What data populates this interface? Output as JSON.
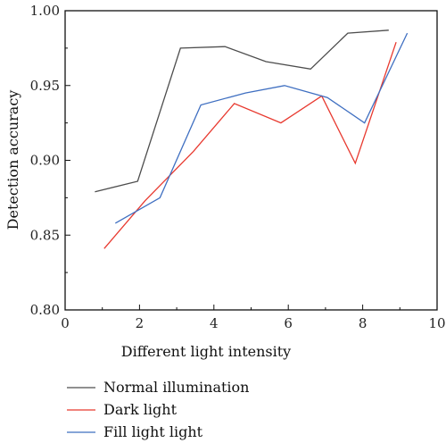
{
  "chart_data": {
    "type": "line",
    "xlabel": "Different light intensity",
    "ylabel": "Detection accuracy",
    "xlim": [
      0,
      10
    ],
    "ylim": [
      0.8,
      1.0
    ],
    "x_ticks": [
      0,
      2,
      4,
      6,
      8,
      10
    ],
    "x_tick_labels": [
      "0",
      "2",
      "4",
      "6",
      "8",
      "10"
    ],
    "y_ticks": [
      0.8,
      0.85,
      0.9,
      0.95,
      1.0
    ],
    "y_tick_labels": [
      "0.80",
      "0.85",
      "0.90",
      "0.95",
      "1.00"
    ],
    "grid": false,
    "legend_position": "bottom",
    "series": [
      {
        "name": "Normal illumination",
        "color": "#4d4d4d",
        "x": [
          0.8,
          1.95,
          3.1,
          4.3,
          5.4,
          6.6,
          7.6,
          8.7
        ],
        "y": [
          0.879,
          0.886,
          0.975,
          0.976,
          0.966,
          0.961,
          0.985,
          0.987
        ]
      },
      {
        "name": "Dark light",
        "color": "#e8392f",
        "x": [
          1.05,
          2.15,
          3.45,
          4.55,
          5.8,
          6.9,
          7.8,
          8.9
        ],
        "y": [
          0.841,
          0.873,
          0.906,
          0.938,
          0.925,
          0.943,
          0.898,
          0.979
        ]
      },
      {
        "name": "Fill light light",
        "color": "#3f6fc1",
        "x": [
          1.35,
          2.55,
          3.65,
          4.85,
          5.9,
          7.05,
          8.05,
          9.2
        ],
        "y": [
          0.858,
          0.875,
          0.937,
          0.945,
          0.95,
          0.942,
          0.925,
          0.985
        ]
      }
    ]
  }
}
